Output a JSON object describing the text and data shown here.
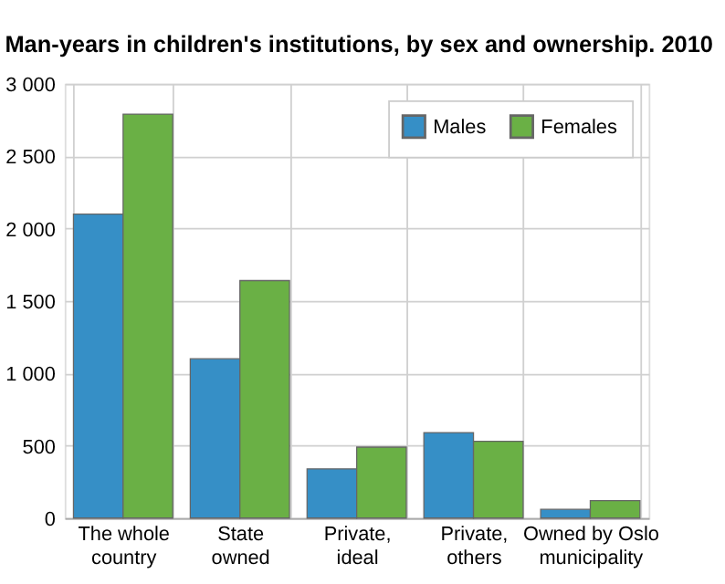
{
  "chart_data": {
    "type": "bar",
    "title": "Man-years in children's institutions, by sex and ownership. 2010",
    "categories": [
      "The whole country",
      "State owned",
      "Private, ideal",
      "Private, others",
      "Owned by Oslo municipality"
    ],
    "series": [
      {
        "name": "Males",
        "color": "#368fc6",
        "values": [
          2100,
          1100,
          340,
          590,
          60
        ]
      },
      {
        "name": "Females",
        "color": "#6ab045",
        "values": [
          2790,
          1640,
          490,
          530,
          120
        ]
      }
    ],
    "ylim": [
      0,
      3000
    ],
    "yticks": [
      0,
      500,
      {
        "value": 1000,
        "label": "1 000"
      },
      {
        "value": 1500,
        "label": "1 500"
      },
      {
        "value": 2000,
        "label": "2 000"
      },
      {
        "value": 2500,
        "label": "2 500"
      },
      {
        "value": 3000,
        "label": "3 000"
      }
    ],
    "grid": true,
    "legend": "top right"
  }
}
